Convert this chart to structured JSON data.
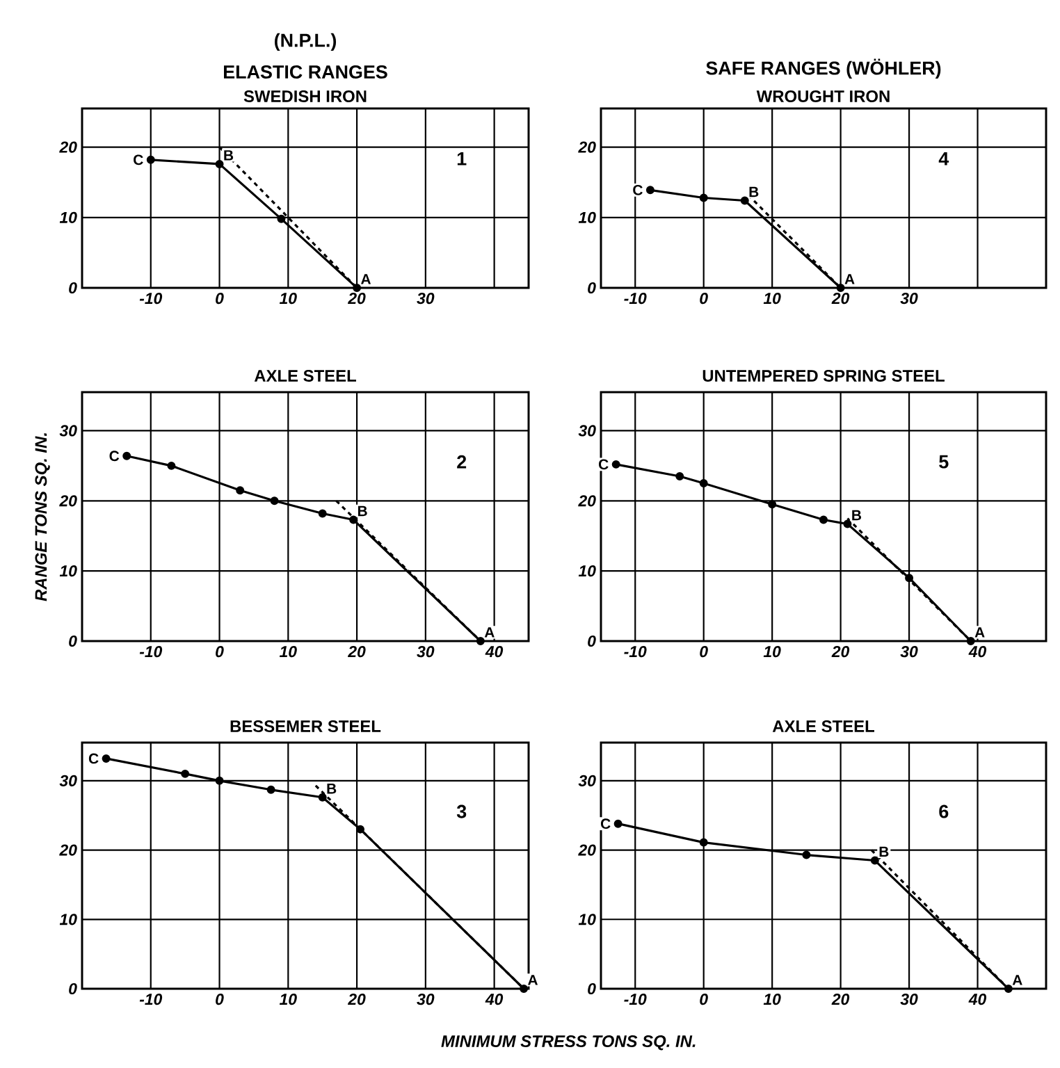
{
  "chart_data": [
    {
      "type": "line",
      "title": "ELASTIC RANGES",
      "subtitle": "SWEDISH IRON",
      "xlim": [
        -20,
        45
      ],
      "ylim": [
        0,
        25.5
      ],
      "xticks": [
        -10,
        0,
        10,
        20,
        30,
        {
          "value": 40,
          "label": null
        }
      ],
      "yticks": [
        0,
        10,
        20
      ],
      "grid": true,
      "series": [
        {
          "color": "#000000",
          "marker": "circle",
          "line_style": "solid",
          "x": [
            -10,
            0,
            9,
            20
          ],
          "values": [
            18.2,
            17.6,
            9.8,
            0
          ]
        },
        {
          "color": "#000000",
          "marker": "none",
          "line_style": "dashed",
          "x": [
            0,
            20
          ],
          "values": [
            20,
            0
          ]
        }
      ],
      "annotations": [
        "(N.P.L.)",
        "1",
        {
          "text": "C",
          "x": -10,
          "y": 18.2
        },
        {
          "text": "B",
          "x": 0,
          "y": 17.6
        },
        {
          "text": "A",
          "x": 20,
          "y": 0
        }
      ]
    },
    {
      "type": "line",
      "title": "SAFE RANGES (WÖHLER)",
      "subtitle": "WROUGHT IRON",
      "xlim": [
        -15,
        50
      ],
      "ylim": [
        0,
        25.5
      ],
      "xticks": [
        -10,
        0,
        10,
        20,
        30,
        {
          "value": 40,
          "label": null
        }
      ],
      "yticks": [
        0,
        10,
        20
      ],
      "grid": true,
      "series": [
        {
          "color": "#000000",
          "marker": "circle",
          "line_style": "solid",
          "x": [
            -7.8,
            0,
            6,
            20
          ],
          "values": [
            13.9,
            12.8,
            12.4,
            0
          ]
        },
        {
          "color": "#000000",
          "marker": "none",
          "line_style": "dashed",
          "x": [
            6.5,
            20
          ],
          "values": [
            13.2,
            0
          ]
        }
      ],
      "annotations": [
        "4",
        {
          "text": "C",
          "x": -7.8,
          "y": 13.9
        },
        {
          "text": "B",
          "x": 6,
          "y": 12.4
        },
        {
          "text": "A",
          "x": 20,
          "y": 0
        }
      ]
    },
    {
      "type": "line",
      "title": "AXLE STEEL",
      "ylabel": "RANGE TONS SQ. IN.",
      "xlim": [
        -20,
        45
      ],
      "ylim": [
        0,
        35.5
      ],
      "xticks": [
        -10,
        0,
        10,
        20,
        30,
        40
      ],
      "yticks": [
        0,
        10,
        20,
        30
      ],
      "grid": true,
      "series": [
        {
          "color": "#000000",
          "marker": "circle",
          "line_style": "solid",
          "x": [
            -13.5,
            -7,
            3,
            8,
            15,
            19.5,
            38
          ],
          "values": [
            26.4,
            25,
            21.5,
            20,
            18.2,
            17.3,
            0
          ]
        },
        {
          "color": "#000000",
          "marker": "none",
          "line_style": "dashed",
          "x": [
            17,
            38
          ],
          "values": [
            20,
            0
          ]
        }
      ],
      "annotations": [
        "2",
        {
          "text": "C",
          "x": -13.5,
          "y": 26.4
        },
        {
          "text": "B",
          "x": 19.5,
          "y": 17.3
        },
        {
          "text": "A",
          "x": 38,
          "y": 0
        }
      ]
    },
    {
      "type": "line",
      "title": "UNTEMPERED SPRING STEEL",
      "xlim": [
        -15,
        50
      ],
      "ylim": [
        0,
        35.5
      ],
      "xticks": [
        -10,
        0,
        10,
        20,
        30,
        40
      ],
      "yticks": [
        0,
        10,
        20,
        30
      ],
      "grid": true,
      "series": [
        {
          "color": "#000000",
          "marker": "circle",
          "line_style": "solid",
          "x": [
            -12.8,
            -3.5,
            0,
            10,
            17.5,
            21,
            30,
            39
          ],
          "values": [
            25.2,
            23.5,
            22.5,
            19.5,
            17.3,
            16.7,
            9,
            0
          ]
        },
        {
          "color": "#000000",
          "marker": "none",
          "line_style": "dashed",
          "x": [
            21,
            39
          ],
          "values": [
            17.5,
            0
          ]
        }
      ],
      "annotations": [
        "5",
        {
          "text": "C",
          "x": -12.8,
          "y": 25.2
        },
        {
          "text": "B",
          "x": 21,
          "y": 16.7
        },
        {
          "text": "A",
          "x": 39,
          "y": 0
        }
      ]
    },
    {
      "type": "line",
      "title": "BESSEMER STEEL",
      "xlabel": "MINIMUM STRESS TONS SQ. IN.",
      "xlim": [
        -20,
        45
      ],
      "ylim": [
        0,
        35.5
      ],
      "xticks": [
        -10,
        0,
        10,
        20,
        30,
        40
      ],
      "yticks": [
        0,
        10,
        20,
        30
      ],
      "grid": true,
      "series": [
        {
          "color": "#000000",
          "marker": "circle",
          "line_style": "solid",
          "x": [
            -16.5,
            -5,
            0,
            7.5,
            15,
            20.5,
            44.3
          ],
          "values": [
            33.2,
            31,
            30,
            28.7,
            27.6,
            23,
            0
          ]
        },
        {
          "color": "#000000",
          "marker": "none",
          "line_style": "dashed",
          "x": [
            14,
            44.3
          ],
          "values": [
            29.3,
            0
          ]
        }
      ],
      "annotations": [
        "3",
        {
          "text": "C",
          "x": -16.5,
          "y": 33.2
        },
        {
          "text": "B",
          "x": 15,
          "y": 27.6
        },
        {
          "text": "A",
          "x": 44.3,
          "y": 0
        }
      ]
    },
    {
      "type": "line",
      "title": "AXLE STEEL",
      "xlim": [
        -15,
        50
      ],
      "ylim": [
        0,
        35.5
      ],
      "xticks": [
        -10,
        0,
        10,
        20,
        30,
        40
      ],
      "yticks": [
        0,
        10,
        20,
        30
      ],
      "grid": true,
      "series": [
        {
          "color": "#000000",
          "marker": "circle",
          "line_style": "solid",
          "x": [
            -12.5,
            0,
            15,
            25,
            44.5
          ],
          "values": [
            23.8,
            21.1,
            19.3,
            18.5,
            0
          ]
        },
        {
          "color": "#000000",
          "marker": "none",
          "line_style": "dashed",
          "x": [
            24.5,
            44.5
          ],
          "values": [
            20,
            0
          ]
        }
      ],
      "annotations": [
        "6",
        {
          "text": "C",
          "x": -12.5,
          "y": 23.8
        },
        {
          "text": "B",
          "x": 25,
          "y": 18.5
        },
        {
          "text": "A",
          "x": 44.5,
          "y": 0
        }
      ]
    }
  ]
}
